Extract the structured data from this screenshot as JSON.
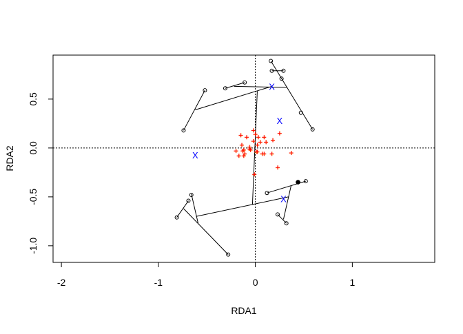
{
  "chart_data": {
    "type": "scatter",
    "title": "",
    "xlabel": "RDA1",
    "ylabel": "RDA2",
    "xlim": [
      -2.086,
      1.85
    ],
    "ylim": [
      -1.17,
      0.95
    ],
    "xticks": [
      {
        "v": -2,
        "label": "-2"
      },
      {
        "v": -1,
        "label": "-1"
      },
      {
        "v": 0,
        "label": "0"
      },
      {
        "v": 1,
        "label": "1"
      }
    ],
    "yticks": [
      {
        "v": -1,
        "label": "-1.0"
      },
      {
        "v": -0.5,
        "label": "-0.5"
      },
      {
        "v": 0,
        "label": "0.0"
      },
      {
        "v": 0.5,
        "label": "0.5"
      }
    ],
    "reference_lines": {
      "x": 0,
      "y": 0,
      "style": "dotted"
    },
    "colors": {
      "sites": "#000000",
      "centroids": "#0000FF",
      "species": "#FF0000",
      "species_secondary": "#FF8C00"
    },
    "sites": [
      [
        0.16,
        0.89
      ],
      [
        0.17,
        0.79
      ],
      [
        0.29,
        0.79
      ],
      [
        0.27,
        0.71
      ],
      [
        0.47,
        0.36
      ],
      [
        0.59,
        0.19
      ],
      [
        -0.31,
        0.61
      ],
      [
        -0.11,
        0.67
      ],
      [
        -0.52,
        0.59
      ],
      [
        -0.74,
        0.18
      ],
      [
        0.12,
        -0.46
      ],
      [
        0.52,
        -0.34
      ],
      [
        0.23,
        -0.68
      ],
      [
        0.32,
        -0.77
      ],
      [
        -0.66,
        -0.48
      ],
      [
        -0.69,
        -0.54
      ],
      [
        -0.81,
        -0.71
      ],
      [
        -0.28,
        -1.09
      ]
    ],
    "filled_sites": [
      [
        0.44,
        -0.35
      ]
    ],
    "centroids": {
      "marker": "X",
      "points": [
        [
          0.17,
          0.63
        ],
        [
          0.25,
          0.28
        ],
        [
          -0.62,
          -0.07
        ],
        [
          0.29,
          -0.52
        ]
      ]
    },
    "species": {
      "marker": "+",
      "points": [
        [
          -0.02,
          0.18
        ],
        [
          0.0,
          0.14
        ],
        [
          -0.15,
          0.13
        ],
        [
          -0.09,
          0.11
        ],
        [
          0.03,
          0.11
        ],
        [
          0.09,
          0.11
        ],
        [
          0.25,
          0.15
        ],
        [
          -0.02,
          0.07
        ],
        [
          0.05,
          0.06
        ],
        [
          0.11,
          0.06
        ],
        [
          0.18,
          0.08
        ],
        [
          0.02,
          0.03
        ],
        [
          -0.14,
          0.03
        ],
        [
          -0.06,
          0.01
        ],
        [
          -0.06,
          -0.01
        ],
        [
          -0.12,
          -0.02
        ],
        [
          -0.2,
          -0.03
        ],
        [
          -0.13,
          -0.03
        ],
        [
          -0.05,
          -0.02
        ],
        [
          0.01,
          -0.04
        ],
        [
          0.02,
          -0.04
        ],
        [
          -0.11,
          -0.06
        ],
        [
          -0.17,
          -0.08
        ],
        [
          -0.12,
          -0.08
        ],
        [
          0.07,
          -0.06
        ],
        [
          0.09,
          -0.06
        ],
        [
          0.17,
          -0.06
        ],
        [
          0.37,
          -0.05
        ],
        [
          0.23,
          -0.2
        ],
        [
          -0.01,
          -0.27
        ]
      ]
    },
    "segments": [
      [
        [
          0.16,
          0.89
        ],
        [
          0.59,
          0.19
        ]
      ],
      [
        [
          0.17,
          0.79
        ],
        [
          0.29,
          0.79
        ]
      ],
      [
        [
          -0.31,
          0.61
        ],
        [
          -0.11,
          0.67
        ]
      ],
      [
        [
          -0.22,
          0.63
        ],
        [
          0.33,
          0.62
        ]
      ],
      [
        [
          -0.62,
          0.39
        ],
        [
          0.17,
          0.63
        ]
      ],
      [
        [
          -0.74,
          0.18
        ],
        [
          -0.52,
          0.59
        ]
      ],
      [
        [
          0.02,
          0.58
        ],
        [
          -0.03,
          -0.58
        ]
      ],
      [
        [
          -0.61,
          -0.7
        ],
        [
          0.34,
          -0.5
        ]
      ],
      [
        [
          -0.66,
          -0.47
        ],
        [
          -0.59,
          -0.77
        ]
      ],
      [
        [
          -0.74,
          -0.62
        ],
        [
          -0.28,
          -1.09
        ]
      ],
      [
        [
          -0.81,
          -0.71
        ],
        [
          -0.69,
          -0.54
        ]
      ],
      [
        [
          0.12,
          -0.46
        ],
        [
          0.52,
          -0.34
        ]
      ],
      [
        [
          0.37,
          -0.38
        ],
        [
          0.29,
          -0.73
        ]
      ],
      [
        [
          0.23,
          -0.68
        ],
        [
          0.32,
          -0.77
        ]
      ]
    ]
  }
}
